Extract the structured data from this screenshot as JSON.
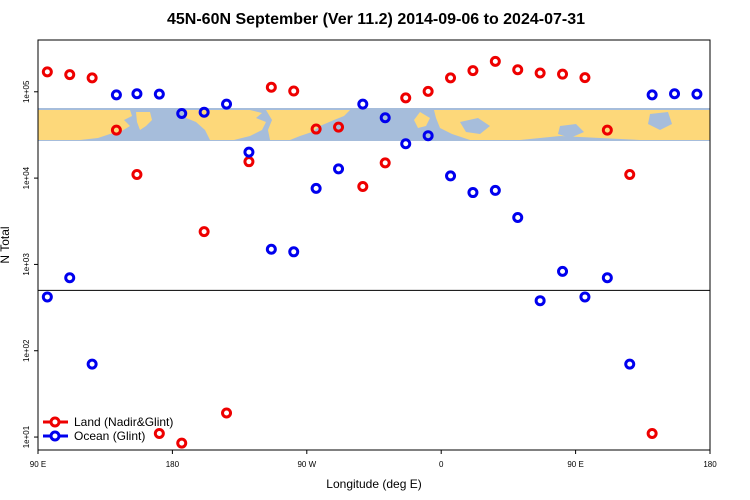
{
  "chart_data": {
    "type": "scatter",
    "title": "45N-60N September (Ver 11.2)   2014-09-06 to 2024-07-31",
    "xlabel": "Longitude (deg E)",
    "ylabel": "N Total",
    "xlim": [
      90,
      450
    ],
    "ylim_log10": [
      0.85,
      5.6
    ],
    "log_y": true,
    "x_ticks": [
      {
        "value": 90,
        "label": "90 E"
      },
      {
        "value": 180,
        "label": "180"
      },
      {
        "value": 270,
        "label": "90 W"
      },
      {
        "value": 360,
        "label": "0"
      },
      {
        "value": 450,
        "label": "90 E"
      },
      {
        "value": 540,
        "label": "180"
      }
    ],
    "y_ticks": [
      {
        "value": 10,
        "label": "1e+01"
      },
      {
        "value": 100,
        "label": "1e+02"
      },
      {
        "value": 1000,
        "label": "1e+03"
      },
      {
        "value": 10000,
        "label": "1e+04"
      },
      {
        "value": 100000,
        "label": "1e+05"
      }
    ],
    "reference_line_y": 500,
    "legend_position": "bottom-left",
    "series": [
      {
        "name": "Land (Nadir&Glint)",
        "color": "#ee0000",
        "points": [
          {
            "x": 95,
            "y": 170000
          },
          {
            "x": 107,
            "y": 158000
          },
          {
            "x": 119,
            "y": 145000
          },
          {
            "x": 132,
            "y": 36000
          },
          {
            "x": 143,
            "y": 11000
          },
          {
            "x": 155,
            "y": 11
          },
          {
            "x": 167,
            "y": 8.5
          },
          {
            "x": 179,
            "y": 2400
          },
          {
            "x": 191,
            "y": 19
          },
          {
            "x": 203,
            "y": 15500
          },
          {
            "x": 215,
            "y": 113000
          },
          {
            "x": 227,
            "y": 102000
          },
          {
            "x": 239,
            "y": 37000
          },
          {
            "x": 251,
            "y": 39000
          },
          {
            "x": 264,
            "y": 8000
          },
          {
            "x": 276,
            "y": 15000
          },
          {
            "x": 287,
            "y": 85000
          },
          {
            "x": 299,
            "y": 101000
          },
          {
            "x": 311,
            "y": 145000
          },
          {
            "x": 323,
            "y": 176000
          },
          {
            "x": 335,
            "y": 225000
          },
          {
            "x": 347,
            "y": 180000
          },
          {
            "x": 359,
            "y": 165000
          },
          {
            "x": 371,
            "y": 160000
          },
          {
            "x": 383,
            "y": 146000
          },
          {
            "x": 395,
            "y": 36000
          },
          {
            "x": 407,
            "y": 11000
          },
          {
            "x": 419,
            "y": 11
          }
        ]
      },
      {
        "name": "Ocean (Glint)",
        "color": "#0000ee",
        "points": [
          {
            "x": 95,
            "y": 420
          },
          {
            "x": 107,
            "y": 700
          },
          {
            "x": 119,
            "y": 70
          },
          {
            "x": 132,
            "y": 92000
          },
          {
            "x": 143,
            "y": 95000
          },
          {
            "x": 155,
            "y": 94000
          },
          {
            "x": 167,
            "y": 56000
          },
          {
            "x": 179,
            "y": 58000
          },
          {
            "x": 191,
            "y": 72000
          },
          {
            "x": 203,
            "y": 20000
          },
          {
            "x": 215,
            "y": 1500
          },
          {
            "x": 227,
            "y": 1400
          },
          {
            "x": 239,
            "y": 7600
          },
          {
            "x": 251,
            "y": 12800
          },
          {
            "x": 264,
            "y": 72000
          },
          {
            "x": 276,
            "y": 50000
          },
          {
            "x": 287,
            "y": 25000
          },
          {
            "x": 299,
            "y": 31000
          },
          {
            "x": 311,
            "y": 10600
          },
          {
            "x": 323,
            "y": 6800
          },
          {
            "x": 335,
            "y": 7200
          },
          {
            "x": 347,
            "y": 3500
          },
          {
            "x": 359,
            "y": 380
          },
          {
            "x": 371,
            "y": 830
          },
          {
            "x": 383,
            "y": 420
          },
          {
            "x": 395,
            "y": 700
          },
          {
            "x": 407,
            "y": 70
          },
          {
            "x": 419,
            "y": 92000
          },
          {
            "x": 431,
            "y": 95000
          },
          {
            "x": 443,
            "y": 94000
          }
        ]
      }
    ]
  }
}
